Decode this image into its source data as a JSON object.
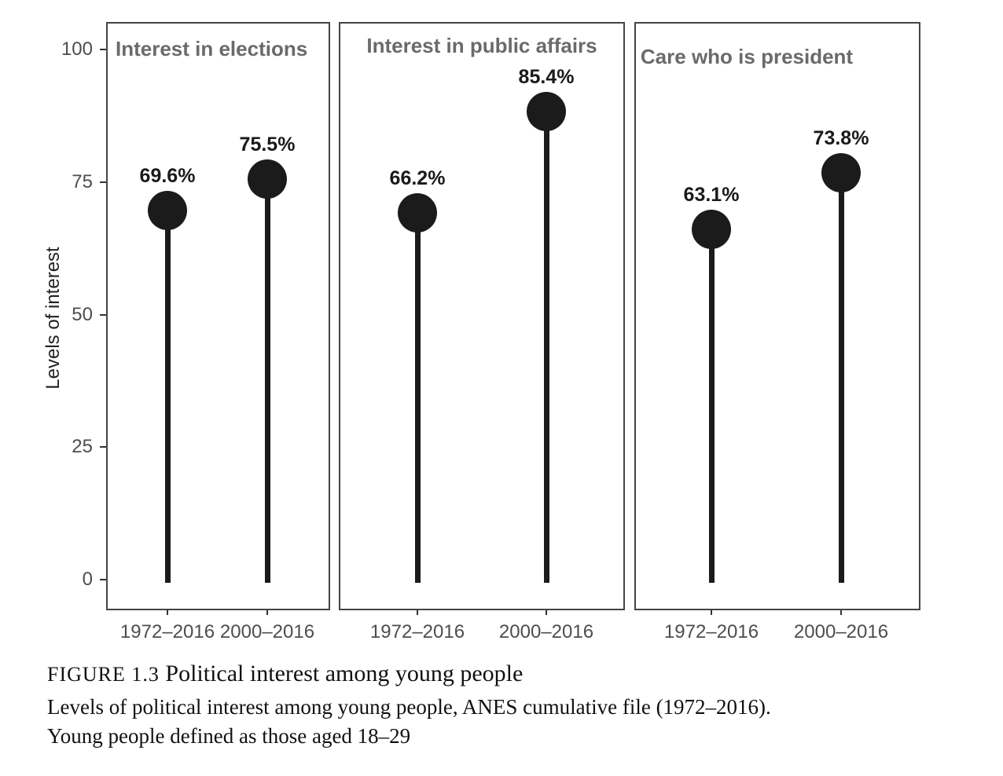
{
  "figure": {
    "caption_label": "FIGURE 1.3",
    "caption_title": "Political interest among young people",
    "caption_line2": "Levels of political interest among young people, ANES cumulative file (1972–2016).",
    "caption_line3": "Young people defined as those aged 18–29"
  },
  "chart_data": {
    "type": "bar",
    "variant": "lollipop",
    "title": "Political interest among young people",
    "ylabel": "Levels of interest",
    "xlabel": "",
    "ylim": [
      0,
      100
    ],
    "yticks": [
      0,
      25,
      50,
      75,
      100
    ],
    "grid": "off",
    "legend": "none",
    "categories": [
      "1972–2016",
      "2000–2016"
    ],
    "panels": [
      {
        "title": "Interest in elections",
        "values": [
          69.6,
          75.5
        ],
        "point_labels": [
          "69.6%",
          "75.5%"
        ]
      },
      {
        "title": "Interest in public affairs",
        "values": [
          66.2,
          85.4
        ],
        "point_labels": [
          "66.2%",
          "85.4%"
        ]
      },
      {
        "title": "Care who is president",
        "values": [
          63.1,
          73.8
        ],
        "point_labels": [
          "63.1%",
          "73.8%"
        ]
      }
    ],
    "colors": {
      "point": "#1b1b1b",
      "stem": "#1b1b1b",
      "panel_border": "#444444",
      "panel_title": "#6a6a6a",
      "tick_label": "#4d4d4d",
      "axis_title": "#222222"
    }
  }
}
